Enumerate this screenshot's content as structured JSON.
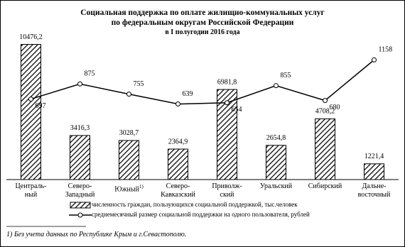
{
  "chart_data": {
    "type": "bar",
    "title": "Социальная поддержка по оплате жилищно-коммунальных услуг\nпо федеральным округам Российской Федерации",
    "subtitle": "в I полугодии 2016 года",
    "categories": [
      "Централь-\nный",
      "Северо-\nЗападный",
      "Южный",
      "Северо-\nКавказский",
      "Приволж-\nский",
      "Уральский",
      "Сибирский",
      "Дальне-\nвосточный"
    ],
    "category_footnote": {
      "index": 2,
      "marker": "1)"
    },
    "series": [
      {
        "name": "численность граждан, пользующихся социальной поддержкой, тыс.человек",
        "type": "bar",
        "color": "#000000",
        "values": [
          10476.2,
          3416.3,
          3028.7,
          2364.9,
          6981.8,
          2654.8,
          4708.2,
          1221.4
        ],
        "value_labels": [
          "10476,2",
          "3416,3",
          "3028,7",
          "2364,9",
          "6981,8",
          "2654,8",
          "4708,2",
          "1221,4"
        ]
      },
      {
        "name": "среднемесячный размер социальной поддержки на одного пользователя, рублей",
        "type": "line",
        "axis": "y2",
        "color": "#000000",
        "values": [
          697,
          875,
          755,
          639,
          654,
          855,
          680,
          1158
        ]
      }
    ],
    "ylim": [
      0,
      11000
    ],
    "y2lim": [
      -250,
      1420
    ],
    "footnote": "1) Без учета данных по Республике Крым и г.Севастополю."
  }
}
